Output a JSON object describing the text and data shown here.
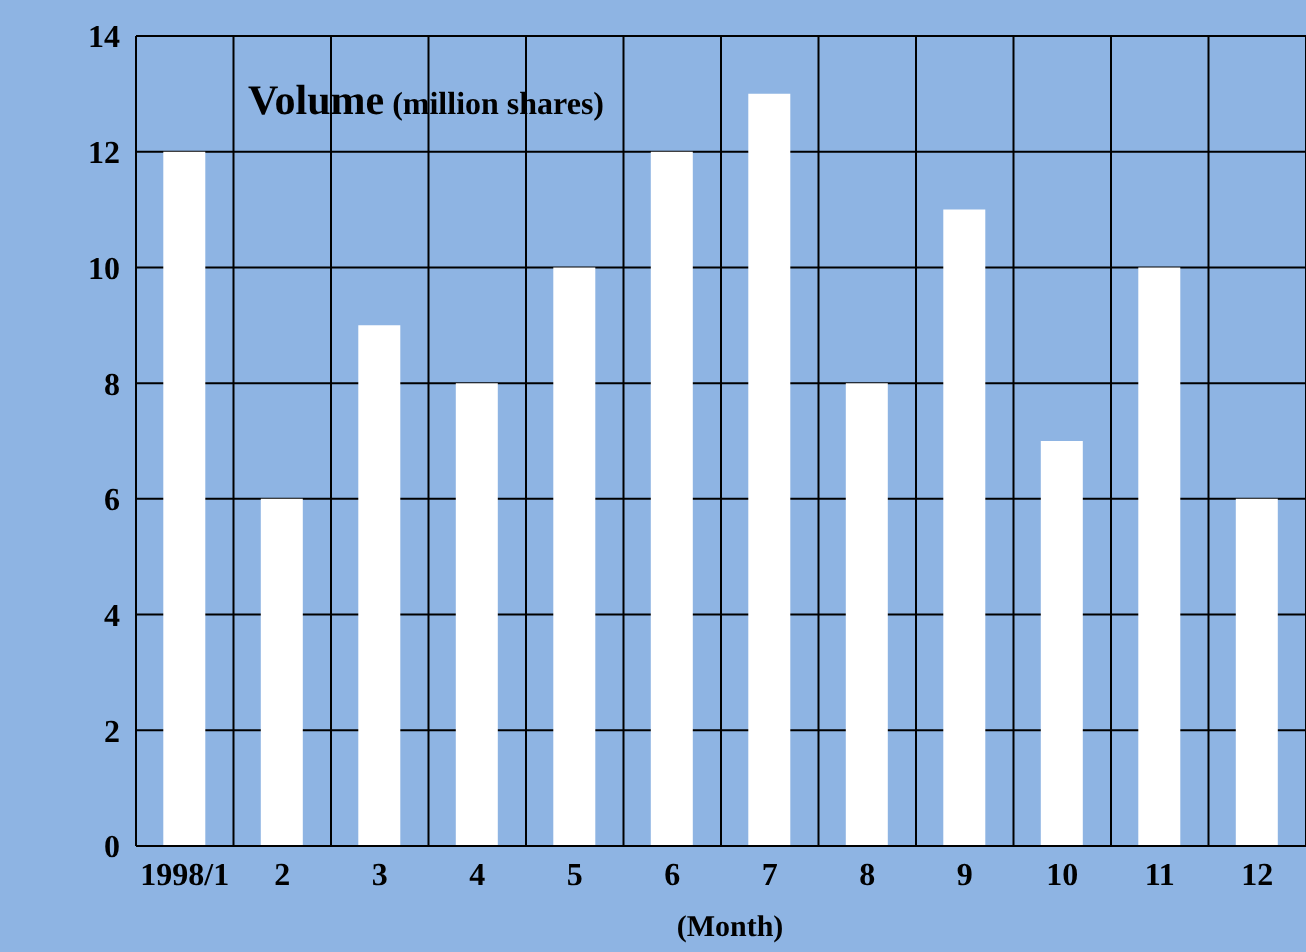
{
  "chart_data": {
    "type": "bar",
    "title": "Volume",
    "ylabel": "(million shares)",
    "xlabel": "(Month)",
    "categories": [
      "1998/1",
      "2",
      "3",
      "4",
      "5",
      "6",
      "7",
      "8",
      "9",
      "10",
      "11",
      "12"
    ],
    "values": [
      12,
      6,
      9,
      8,
      10,
      12,
      13,
      8,
      11,
      7,
      10,
      6
    ],
    "color": "#ffffff",
    "ylim": [
      0,
      14
    ],
    "yticks": [
      0,
      2,
      4,
      6,
      8,
      10,
      12,
      14
    ],
    "grid": true
  }
}
